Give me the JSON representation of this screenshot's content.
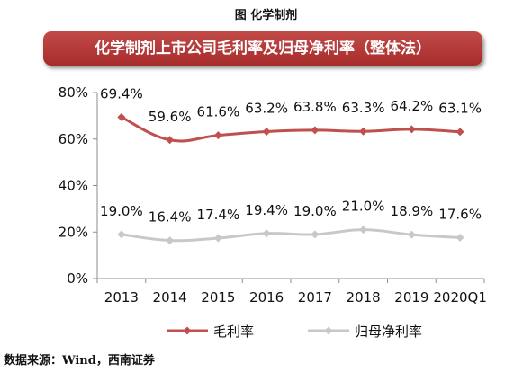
{
  "figure_caption": "图  化学制剂",
  "source_note": "数据来源：Wind，西南证券",
  "colors": {
    "banner": "#b33836",
    "series_gross": "#c0504d",
    "series_net": "#c8c8c8"
  },
  "chart_data": {
    "type": "line",
    "title": "化学制剂上市公司毛利率及归母净利率（整体法）",
    "xlabel": "",
    "ylabel": "",
    "categories": [
      "2013",
      "2014",
      "2015",
      "2016",
      "2017",
      "2018",
      "2019",
      "2020Q1"
    ],
    "ylim": [
      0,
      80
    ],
    "yticks": [
      "0%",
      "20%",
      "40%",
      "60%",
      "80%"
    ],
    "grid": false,
    "legend_position": "bottom",
    "series": [
      {
        "name": "毛利率",
        "values": [
          69.4,
          59.6,
          61.6,
          63.2,
          63.8,
          63.3,
          64.2,
          63.1
        ],
        "labels": [
          "69.4%",
          "59.6%",
          "61.6%",
          "63.2%",
          "63.8%",
          "63.3%",
          "64.2%",
          "63.1%"
        ],
        "color": "#c0504d"
      },
      {
        "name": "归母净利率",
        "values": [
          19.0,
          16.4,
          17.4,
          19.4,
          19.0,
          21.0,
          18.9,
          17.6
        ],
        "labels": [
          "19.0%",
          "16.4%",
          "17.4%",
          "19.4%",
          "19.0%",
          "21.0%",
          "18.9%",
          "17.6%"
        ],
        "color": "#c8c8c8"
      }
    ]
  }
}
